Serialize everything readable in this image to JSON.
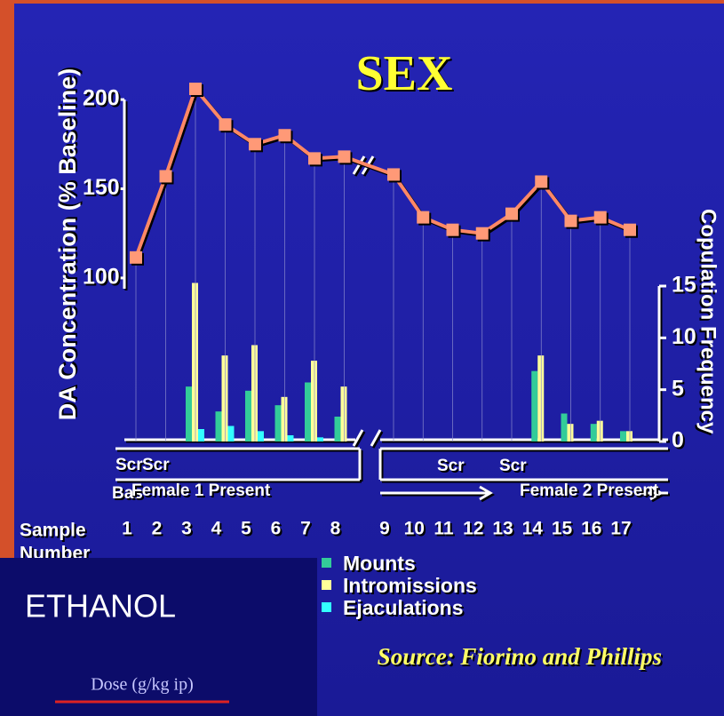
{
  "chart_data": {
    "type": "combo",
    "title": "SEX",
    "y_label": "DA Concentration (% Baseline)",
    "y2_label": "Copulation Frequency",
    "x_label_lines": [
      "Sample",
      "Number"
    ],
    "categories": [
      "1",
      "2",
      "3",
      "4",
      "5",
      "6",
      "7",
      "8",
      "9",
      "10",
      "11",
      "12",
      "13",
      "14",
      "15",
      "16",
      "17"
    ],
    "ylim": [
      90,
      210
    ],
    "yticks": [
      100,
      150,
      200
    ],
    "y2lim": [
      0,
      15
    ],
    "y2ticks": [
      0,
      5,
      10,
      15
    ],
    "series": [
      {
        "type": "line",
        "color": "#ff8866",
        "values": [
          111.5,
          157,
          206,
          186,
          175,
          180,
          167,
          168,
          158,
          134,
          127,
          125,
          136,
          154,
          132,
          134,
          127
        ]
      },
      {
        "type": "bar",
        "axis": "y2",
        "name": "Mounts",
        "color": "#33cc99",
        "values": [
          0,
          0,
          5.3,
          2.9,
          4.9,
          3.5,
          5.7,
          2.4,
          0,
          0,
          0,
          0,
          0,
          6.8,
          2.7,
          1.7,
          1.0
        ]
      },
      {
        "type": "bar",
        "axis": "y2",
        "name": "Intromissions",
        "color": "#ffff99",
        "values": [
          0,
          0,
          15.3,
          8.3,
          9.3,
          4.3,
          7.8,
          5.3,
          0,
          0,
          0,
          0,
          0,
          8.3,
          1.7,
          2.0,
          1.0
        ]
      },
      {
        "type": "bar",
        "axis": "y2",
        "name": "Ejaculations",
        "color": "#33ffff",
        "values": [
          0,
          0,
          1.2,
          1.5,
          1.0,
          0.6,
          0.4,
          0,
          0,
          0,
          0,
          0,
          0,
          0,
          0,
          0,
          0
        ]
      }
    ],
    "annotations": [
      "Scr",
      "Scr",
      "Bas",
      "Female 1 Present",
      "Scr",
      "Scr",
      "Female 2 Present"
    ],
    "source": "Source: Fiorino and Phillips"
  },
  "panel": {
    "title": "ETHANOL",
    "link": "Dose (g/kg ip)"
  }
}
